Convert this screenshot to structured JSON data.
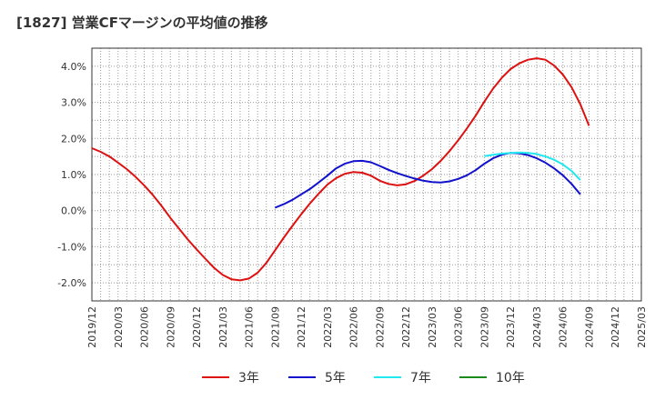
{
  "title": "[1827]  営業CFマージンの平均値の推移",
  "chart_data": {
    "type": "line",
    "title": "[1827]  営業CFマージンの平均値の推移",
    "xlabel": "",
    "ylabel": "",
    "ylim": [
      -2.5,
      4.5
    ],
    "y_ticks": [
      4.0,
      3.0,
      2.0,
      1.0,
      0.0,
      -1.0,
      -2.0
    ],
    "y_tick_labels": [
      "4.0%",
      "3.0%",
      "2.0%",
      "1.0%",
      "0.0%",
      "-1.0%",
      "-2.0%"
    ],
    "x_tick_labels": [
      "2019/12",
      "2020/03",
      "2020/06",
      "2020/09",
      "2020/12",
      "2021/03",
      "2021/06",
      "2021/09",
      "2021/12",
      "2022/03",
      "2022/06",
      "2022/09",
      "2022/12",
      "2023/03",
      "2023/06",
      "2023/09",
      "2023/12",
      "2024/03",
      "2024/06",
      "2024/09",
      "2024/12",
      "2025/03"
    ],
    "grid": true,
    "legend_position": "bottom",
    "series": [
      {
        "name": "3年",
        "color": "#dd1111",
        "points": [
          [
            "2019/12",
            1.73
          ],
          [
            "2020/01",
            1.63
          ],
          [
            "2020/02",
            1.5
          ],
          [
            "2020/03",
            1.33
          ],
          [
            "2020/04",
            1.15
          ],
          [
            "2020/05",
            0.94
          ],
          [
            "2020/06",
            0.7
          ],
          [
            "2020/07",
            0.43
          ],
          [
            "2020/08",
            0.13
          ],
          [
            "2020/09",
            -0.2
          ],
          [
            "2020/10",
            -0.5
          ],
          [
            "2020/11",
            -0.8
          ],
          [
            "2020/12",
            -1.07
          ],
          [
            "2020/13",
            -1.33
          ],
          [
            "2020/14",
            -1.58
          ],
          [
            "2021/03",
            -1.78
          ],
          [
            "2021/04",
            -1.9
          ],
          [
            "2021/05",
            -1.93
          ],
          [
            "2021/06",
            -1.88
          ],
          [
            "2021/07",
            -1.72
          ],
          [
            "2021/08",
            -1.45
          ],
          [
            "2021/09",
            -1.1
          ],
          [
            "2021/10",
            -0.75
          ],
          [
            "2021/11",
            -0.42
          ],
          [
            "2021/12",
            -0.1
          ],
          [
            "2022/01",
            0.2
          ],
          [
            "2022/02",
            0.47
          ],
          [
            "2022/03",
            0.72
          ],
          [
            "2022/04",
            0.9
          ],
          [
            "2022/05",
            1.02
          ],
          [
            "2022/06",
            1.07
          ],
          [
            "2022/07",
            1.05
          ],
          [
            "2022/08",
            0.97
          ],
          [
            "2022/09",
            0.83
          ],
          [
            "2022/10",
            0.74
          ],
          [
            "2022/11",
            0.7
          ],
          [
            "2022/12",
            0.73
          ],
          [
            "2023/01",
            0.82
          ],
          [
            "2023/02",
            0.97
          ],
          [
            "2023/03",
            1.15
          ],
          [
            "2023/04",
            1.38
          ],
          [
            "2023/05",
            1.65
          ],
          [
            "2023/06",
            1.95
          ],
          [
            "2023/07",
            2.28
          ],
          [
            "2023/08",
            2.63
          ],
          [
            "2023/09",
            3.02
          ],
          [
            "2023/10",
            3.38
          ],
          [
            "2023/11",
            3.68
          ],
          [
            "2023/12",
            3.92
          ],
          [
            "2024/01",
            4.08
          ],
          [
            "2024/02",
            4.18
          ],
          [
            "2024/03",
            4.22
          ],
          [
            "2024/04",
            4.18
          ],
          [
            "2024/05",
            4.02
          ],
          [
            "2024/06",
            3.77
          ],
          [
            "2024/07",
            3.42
          ],
          [
            "2024/08",
            2.95
          ],
          [
            "2024/09",
            2.35
          ]
        ]
      },
      {
        "name": "5年",
        "color": "#1111cc",
        "points": [
          [
            "2021/09",
            0.08
          ],
          [
            "2021/10",
            0.18
          ],
          [
            "2021/11",
            0.3
          ],
          [
            "2021/12",
            0.45
          ],
          [
            "2022/01",
            0.6
          ],
          [
            "2022/02",
            0.78
          ],
          [
            "2022/03",
            0.97
          ],
          [
            "2022/04",
            1.17
          ],
          [
            "2022/05",
            1.3
          ],
          [
            "2022/06",
            1.37
          ],
          [
            "2022/07",
            1.38
          ],
          [
            "2022/08",
            1.34
          ],
          [
            "2022/09",
            1.24
          ],
          [
            "2022/10",
            1.13
          ],
          [
            "2022/11",
            1.04
          ],
          [
            "2022/12",
            0.96
          ],
          [
            "2023/01",
            0.89
          ],
          [
            "2023/02",
            0.83
          ],
          [
            "2023/03",
            0.79
          ],
          [
            "2023/04",
            0.78
          ],
          [
            "2023/05",
            0.81
          ],
          [
            "2023/06",
            0.88
          ],
          [
            "2023/07",
            0.98
          ],
          [
            "2023/08",
            1.12
          ],
          [
            "2023/09",
            1.3
          ],
          [
            "2023/10",
            1.45
          ],
          [
            "2023/11",
            1.55
          ],
          [
            "2023/12",
            1.6
          ],
          [
            "2024/01",
            1.59
          ],
          [
            "2024/02",
            1.54
          ],
          [
            "2024/03",
            1.45
          ],
          [
            "2024/04",
            1.33
          ],
          [
            "2024/05",
            1.17
          ],
          [
            "2024/06",
            0.98
          ],
          [
            "2024/07",
            0.74
          ],
          [
            "2024/08",
            0.45
          ]
        ]
      },
      {
        "name": "7年",
        "color": "#22e8f0",
        "points": [
          [
            "2023/09",
            1.51
          ],
          [
            "2023/10",
            1.55
          ],
          [
            "2023/11",
            1.58
          ],
          [
            "2023/12",
            1.6
          ],
          [
            "2024/01",
            1.61
          ],
          [
            "2024/02",
            1.6
          ],
          [
            "2024/03",
            1.57
          ],
          [
            "2024/04",
            1.5
          ],
          [
            "2024/05",
            1.41
          ],
          [
            "2024/06",
            1.28
          ],
          [
            "2024/07",
            1.1
          ],
          [
            "2024/08",
            0.85
          ]
        ]
      },
      {
        "name": "10年",
        "color": "#1a8a1a",
        "points": []
      }
    ]
  }
}
